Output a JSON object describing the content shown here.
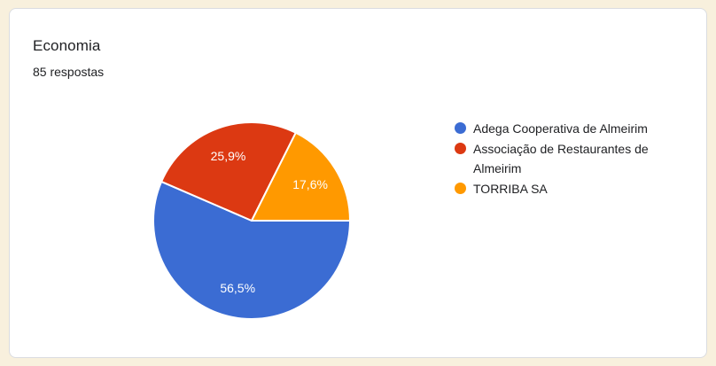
{
  "card": {
    "title": "Economia",
    "responses_count": "85 respostas"
  },
  "colors": {
    "page_background": "#f8f0dd",
    "card_background": "#ffffff",
    "card_border": "#dadce0",
    "text": "#202124",
    "slice_label_text": "#ffffff"
  },
  "chart_data": {
    "type": "pie",
    "title": "Economia",
    "subtitle": "85 respostas",
    "legend_position": "right",
    "start_angle_deg_clockwise_from_3oclock": 0,
    "total_responses": 85,
    "slices": [
      {
        "label": "Adega Cooperativa de Almeirim",
        "value_pct": 56.5,
        "display": "56,5%",
        "color": "#3b6cd3"
      },
      {
        "label": "Associação de Restaurantes de Almeirim",
        "value_pct": 25.9,
        "display": "25,9%",
        "color": "#dc3912"
      },
      {
        "label": "TORRIBA SA",
        "value_pct": 17.6,
        "display": "17,6%",
        "color": "#ff9900"
      }
    ]
  }
}
